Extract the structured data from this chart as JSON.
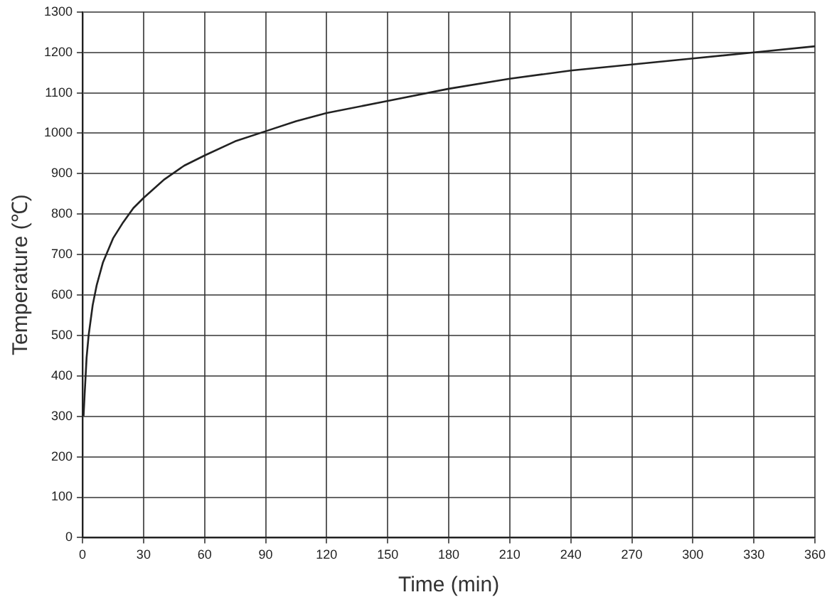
{
  "chart_data": {
    "type": "line",
    "xlabel": "Time (min)",
    "ylabel": "Temperature (℃)",
    "x": [
      0.5,
      1,
      2,
      3,
      5,
      7,
      10,
      15,
      20,
      25,
      30,
      40,
      50,
      60,
      75,
      90,
      105,
      120,
      150,
      180,
      210,
      240,
      270,
      300,
      330,
      360
    ],
    "series": [
      {
        "color": "#222222",
        "values": [
          300,
          350,
          445,
          500,
          575,
          625,
          680,
          740,
          780,
          815,
          840,
          885,
          920,
          945,
          980,
          1005,
          1030,
          1050,
          1080,
          1110,
          1135,
          1155,
          1170,
          1185,
          1200,
          1215
        ]
      }
    ],
    "xlim": [
      0,
      360
    ],
    "xticks": [
      0,
      30,
      60,
      90,
      120,
      150,
      180,
      210,
      240,
      270,
      300,
      330,
      360
    ],
    "ylim": [
      0,
      1300
    ],
    "yticks": [
      0,
      100,
      200,
      300,
      400,
      500,
      600,
      700,
      800,
      900,
      1000,
      1100,
      1200,
      1300
    ],
    "grid": true,
    "marker": "none",
    "line_style": "solid"
  }
}
